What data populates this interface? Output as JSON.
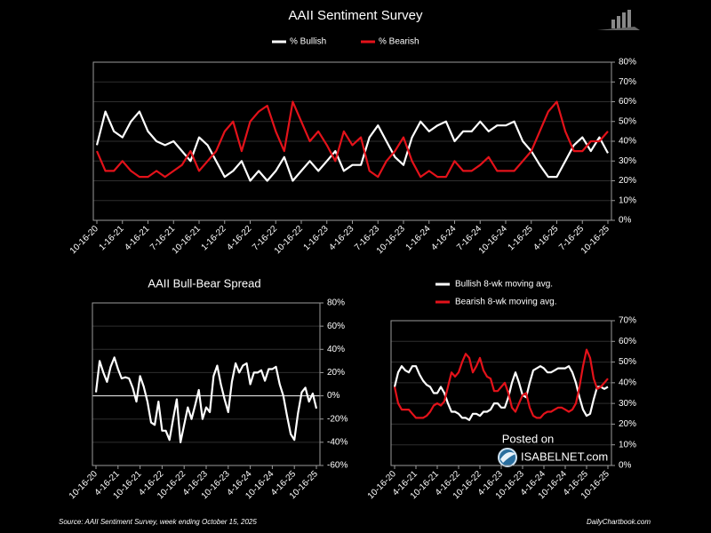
{
  "chart_data": [
    {
      "type": "line",
      "title": "AAII Sentiment Survey",
      "legend": "top",
      "categories": [
        "10-16-20",
        null,
        null,
        "1-16-21",
        null,
        null,
        "4-16-21",
        null,
        null,
        "7-16-21",
        null,
        null,
        "10-16-21",
        null,
        null,
        "1-16-22",
        null,
        null,
        "4-16-22",
        null,
        null,
        "7-16-22",
        null,
        null,
        "10-16-22",
        null,
        null,
        "1-16-23",
        null,
        null,
        "4-16-23",
        null,
        null,
        "7-16-23",
        null,
        null,
        "10-16-23",
        null,
        null,
        "1-16-24",
        null,
        null,
        "4-16-24",
        null,
        null,
        "7-16-24",
        null,
        null,
        "10-16-24",
        null,
        null,
        "1-16-25",
        null,
        null,
        "4-16-25",
        null,
        null,
        "7-16-25",
        null,
        null,
        "10-16-25"
      ],
      "series": [
        {
          "name": "% Bullish",
          "color": "#ffffff",
          "values": [
            38,
            55,
            45,
            42,
            50,
            55,
            45,
            40,
            38,
            40,
            35,
            30,
            42,
            38,
            30,
            22,
            25,
            30,
            20,
            25,
            20,
            25,
            32,
            20,
            25,
            30,
            25,
            30,
            35,
            25,
            28,
            28,
            42,
            48,
            40,
            32,
            28,
            42,
            50,
            45,
            48,
            50,
            40,
            45,
            45,
            50,
            45,
            48,
            48,
            50,
            40,
            35,
            28,
            22,
            22,
            30,
            38,
            42,
            35,
            42,
            34
          ]
        },
        {
          "name": "% Bearish",
          "color": "#e3121a",
          "values": [
            35,
            25,
            25,
            30,
            25,
            22,
            22,
            25,
            22,
            25,
            28,
            35,
            25,
            30,
            35,
            45,
            50,
            35,
            50,
            55,
            58,
            45,
            35,
            60,
            50,
            40,
            45,
            38,
            30,
            45,
            38,
            42,
            25,
            22,
            30,
            35,
            42,
            30,
            22,
            25,
            22,
            22,
            30,
            25,
            25,
            28,
            32,
            25,
            25,
            25,
            30,
            35,
            45,
            55,
            60,
            45,
            35,
            35,
            40,
            40,
            45
          ]
        }
      ],
      "ylim": [
        0,
        80
      ],
      "yticks": [
        {
          "value": 0,
          "label": "0%"
        },
        {
          "value": 10,
          "label": "10%"
        },
        {
          "value": 20,
          "label": "20%"
        },
        {
          "value": 30,
          "label": "30%"
        },
        {
          "value": 40,
          "label": "40%"
        },
        {
          "value": 50,
          "label": "50%"
        },
        {
          "value": 60,
          "label": "60%"
        },
        {
          "value": 70,
          "label": "70%"
        },
        {
          "value": 80,
          "label": "80%"
        }
      ],
      "grid": true
    },
    {
      "type": "line",
      "title": "AAII Bull-Bear Spread",
      "categories": [
        "10-16-20",
        null,
        null,
        null,
        null,
        null,
        "4-16-21",
        null,
        null,
        null,
        null,
        null,
        "10-16-21",
        null,
        null,
        null,
        null,
        null,
        "4-16-22",
        null,
        null,
        null,
        null,
        null,
        "10-16-22",
        null,
        null,
        null,
        null,
        null,
        "4-16-23",
        null,
        null,
        null,
        null,
        null,
        "10-16-23",
        null,
        null,
        null,
        null,
        null,
        "4-16-24",
        null,
        null,
        null,
        null,
        null,
        "10-16-24",
        null,
        null,
        null,
        null,
        null,
        "4-16-25",
        null,
        null,
        null,
        null,
        null,
        "10-16-25"
      ],
      "series": [
        {
          "color": "#ffffff",
          "values": [
            3,
            30,
            20,
            12,
            25,
            33,
            23,
            15,
            16,
            15,
            7,
            -5,
            17,
            8,
            -5,
            -23,
            -25,
            -5,
            -30,
            -30,
            -38,
            -20,
            -3,
            -40,
            -25,
            -10,
            -20,
            -8,
            5,
            -20,
            -10,
            -14,
            17,
            26,
            10,
            -3,
            -14,
            12,
            28,
            20,
            26,
            28,
            10,
            20,
            20,
            22,
            13,
            23,
            23,
            25,
            10,
            0,
            -17,
            -33,
            -38,
            -15,
            3,
            7,
            -5,
            2,
            -11
          ]
        }
      ],
      "ylim": [
        -60,
        80
      ],
      "yticks": [
        {
          "value": -60,
          "label": "-60%"
        },
        {
          "value": -40,
          "label": "-40%"
        },
        {
          "value": -20,
          "label": "-20%"
        },
        {
          "value": 0,
          "label": "0%"
        },
        {
          "value": 20,
          "label": "20%"
        },
        {
          "value": 40,
          "label": "40%"
        },
        {
          "value": 60,
          "label": "60%"
        },
        {
          "value": 80,
          "label": "80%"
        }
      ],
      "grid": true,
      "zero_line": true
    },
    {
      "type": "line",
      "legend": "top-left",
      "categories": [
        "10-16-20",
        null,
        null,
        null,
        null,
        null,
        "4-16-21",
        null,
        null,
        null,
        null,
        null,
        "10-16-21",
        null,
        null,
        null,
        null,
        null,
        "4-16-22",
        null,
        null,
        null,
        null,
        null,
        "10-16-22",
        null,
        null,
        null,
        null,
        null,
        "4-16-23",
        null,
        null,
        null,
        null,
        null,
        "10-16-23",
        null,
        null,
        null,
        null,
        null,
        "4-16-24",
        null,
        null,
        null,
        null,
        null,
        "10-16-24",
        null,
        null,
        null,
        null,
        null,
        "4-16-25",
        null,
        null,
        null,
        null,
        null,
        "10-16-25"
      ],
      "series": [
        {
          "name": "Bullish 8-wk moving avg.",
          "color": "#ffffff",
          "values": [
            38,
            45,
            48,
            46,
            45,
            48,
            48,
            44,
            41,
            39,
            38,
            35,
            35,
            38,
            35,
            30,
            26,
            26,
            25,
            23,
            23,
            22,
            25,
            25,
            24,
            26,
            26,
            27,
            30,
            30,
            28,
            28,
            33,
            40,
            45,
            40,
            34,
            33,
            40,
            46,
            47,
            48,
            47,
            45,
            45,
            46,
            47,
            47,
            47,
            48,
            45,
            40,
            33,
            27,
            24,
            25,
            32,
            38,
            38,
            37,
            38
          ]
        },
        {
          "name": "Bearish 8-wk moving avg.",
          "color": "#e3121a",
          "values": [
            38,
            30,
            27,
            27,
            27,
            25,
            23,
            23,
            23,
            24,
            26,
            29,
            30,
            29,
            31,
            38,
            45,
            43,
            45,
            50,
            54,
            52,
            45,
            48,
            52,
            46,
            43,
            42,
            36,
            36,
            38,
            40,
            35,
            28,
            26,
            30,
            34,
            35,
            28,
            24,
            23,
            23,
            25,
            26,
            26,
            27,
            28,
            28,
            27,
            26,
            27,
            30,
            38,
            48,
            56,
            52,
            42,
            37,
            38,
            40,
            42
          ]
        }
      ],
      "ylim": [
        0,
        70
      ],
      "yticks": [
        {
          "value": 0,
          "label": "0%"
        },
        {
          "value": 10,
          "label": "10%"
        },
        {
          "value": 20,
          "label": "20%"
        },
        {
          "value": 30,
          "label": "30%"
        },
        {
          "value": 40,
          "label": "40%"
        },
        {
          "value": 50,
          "label": "50%"
        },
        {
          "value": 60,
          "label": "60%"
        },
        {
          "value": 70,
          "label": "70%"
        }
      ],
      "grid": true
    }
  ],
  "watermark": {
    "line1": "Posted on",
    "line2": "ISABELNET.com"
  },
  "footer": {
    "source": "Source: AAII Sentiment Survey, week ending October 15, 2025",
    "credit": "DailyChartbook.com"
  }
}
